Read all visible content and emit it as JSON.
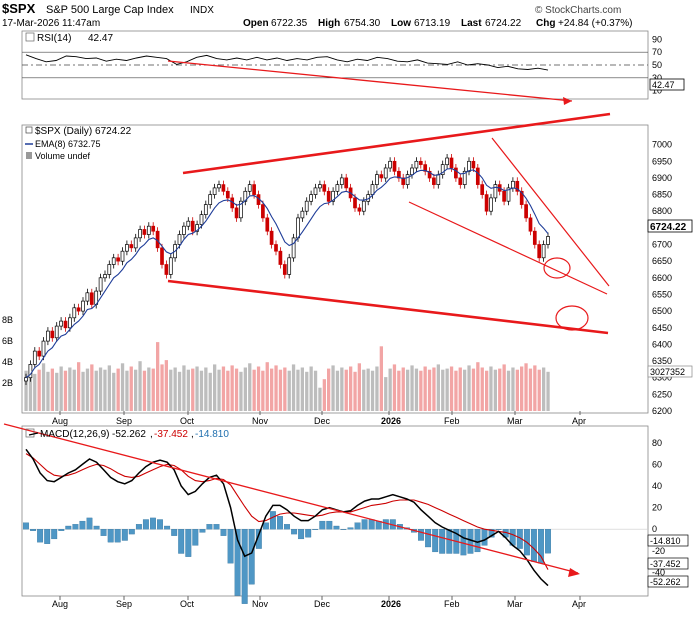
{
  "header": {
    "symbol": "$SPX",
    "name": "S&P 500 Large Cap Index",
    "exchange": "INDX",
    "date": "17-Mar-2026 11:47am",
    "open_label": "Open",
    "open": "6722.35",
    "high_label": "High",
    "high": "6754.30",
    "low_label": "Low",
    "low": "6713.19",
    "last_label": "Last",
    "last": "6724.22",
    "chg_label": "Chg",
    "chg": "+24.84 (+0.37%)",
    "brand": "© StockCharts.com"
  },
  "colors": {
    "up": "#000000",
    "down": "#cc0000",
    "trend": "#e8191b",
    "ema": "#1f3d99",
    "vol_gray": "#bdbdbd",
    "vol_red": "#f2a5a5",
    "hist": "#4f97c5"
  },
  "chart_data": [
    {
      "type": "line",
      "title": "RSI(14) 42.47",
      "indicator_label": "RSI(14)",
      "indicator_value": "42.47",
      "ylim": [
        0,
        100
      ],
      "y_ticks": [
        "90",
        "70",
        "50",
        "30",
        "10"
      ],
      "reference_lines": [
        70,
        50,
        30
      ],
      "last_value_tag": "42.47",
      "values": [
        66,
        60,
        55,
        57,
        64,
        63,
        60,
        61,
        56,
        59,
        57,
        61,
        64,
        62,
        60,
        51,
        55,
        62,
        65,
        60,
        58,
        61,
        58,
        62,
        58,
        61,
        57,
        60,
        58,
        62,
        63,
        58,
        55,
        59,
        57,
        62,
        60,
        56,
        55,
        58,
        53,
        52,
        51,
        55,
        50,
        52,
        50,
        46,
        48,
        44,
        43,
        45,
        42
      ]
    },
    {
      "type": "candlestick",
      "title": "$SPX (Daily) 6724.22",
      "legend": [
        "$SPX (Daily) 6724.22",
        "EMA(8) 6732.75",
        "Volume undef"
      ],
      "ylim": [
        6200,
        7050
      ],
      "y_ticks": [
        "7000",
        "6950",
        "6900",
        "6850",
        "6800",
        "6750",
        "6700",
        "6650",
        "6600",
        "6550",
        "6500",
        "6450",
        "6400",
        "6350",
        "6300",
        "6250",
        "6200"
      ],
      "last_value_tag": "6724.22",
      "volume_tag": "3027352",
      "volume_ticks": [
        "8B",
        "6B",
        "4B",
        "2B"
      ],
      "x_labels": [
        "Aug",
        "Sep",
        "Oct",
        "Nov",
        "Dec",
        "2026",
        "Feb",
        "Mar",
        "Apr"
      ],
      "closes": [
        6300,
        6340,
        6380,
        6365,
        6410,
        6440,
        6420,
        6455,
        6470,
        6450,
        6480,
        6510,
        6500,
        6530,
        6555,
        6520,
        6560,
        6600,
        6610,
        6640,
        6660,
        6650,
        6680,
        6700,
        6690,
        6720,
        6745,
        6730,
        6755,
        6740,
        6690,
        6640,
        6610,
        6660,
        6700,
        6730,
        6755,
        6770,
        6740,
        6760,
        6790,
        6820,
        6850,
        6870,
        6880,
        6860,
        6840,
        6810,
        6780,
        6830,
        6860,
        6880,
        6850,
        6820,
        6780,
        6740,
        6700,
        6680,
        6640,
        6610,
        6660,
        6720,
        6780,
        6800,
        6830,
        6850,
        6870,
        6880,
        6860,
        6830,
        6860,
        6880,
        6900,
        6870,
        6840,
        6810,
        6800,
        6830,
        6850,
        6880,
        6910,
        6900,
        6930,
        6950,
        6920,
        6900,
        6880,
        6910,
        6930,
        6950,
        6940,
        6920,
        6900,
        6880,
        6910,
        6940,
        6960,
        6930,
        6900,
        6880,
        6920,
        6950,
        6930,
        6880,
        6850,
        6800,
        6840,
        6880,
        6860,
        6830,
        6870,
        6890,
        6860,
        6820,
        6780,
        6740,
        6700,
        6660,
        6700,
        6724
      ],
      "ema": [
        6300,
        6310,
        6330,
        6340,
        6360,
        6380,
        6390,
        6410,
        6425,
        6430,
        6445,
        6460,
        6470,
        6485,
        6505,
        6508,
        6520,
        6540,
        6560,
        6580,
        6600,
        6610,
        6625,
        6645,
        6655,
        6670,
        6690,
        6700,
        6715,
        6720,
        6712,
        6695,
        6678,
        6672,
        6680,
        6695,
        6715,
        6730,
        6734,
        6742,
        6755,
        6770,
        6790,
        6810,
        6825,
        6832,
        6834,
        6828,
        6818,
        6821,
        6832,
        6846,
        6847,
        6839,
        6826,
        6808,
        6784,
        6762,
        6735,
        6708,
        6697,
        6703,
        6720,
        6738,
        6757,
        6777,
        6797,
        6814,
        6823,
        6825,
        6833,
        6844,
        6857,
        6860,
        6855,
        6844,
        6834,
        6833,
        6837,
        6848,
        6863,
        6872,
        6884,
        6899,
        6903,
        6902,
        6898,
        6901,
        6908,
        6918,
        6923,
        6922,
        6917,
        6908,
        6909,
        6916,
        6927,
        6928,
        6922,
        6912,
        6914,
        6922,
        6924,
        6915,
        6900,
        6878,
        6869,
        6872,
        6870,
        6862,
        6864,
        6870,
        6867,
        6856,
        6839,
        6817,
        6791,
        6763,
        6749,
        6732.75
      ],
      "volume_bn": [
        3.8,
        4.2,
        3.5,
        3.9,
        4.5,
        3.7,
        4.0,
        3.6,
        4.2,
        3.8,
        4.1,
        3.9,
        4.6,
        3.7,
        4.0,
        4.4,
        3.8,
        4.1,
        3.9,
        4.3,
        3.6,
        4.0,
        4.5,
        3.8,
        4.2,
        3.9,
        4.7,
        3.8,
        4.1,
        4.0,
        6.5,
        4.4,
        4.8,
        3.9,
        4.1,
        3.7,
        4.3,
        3.9,
        4.0,
        4.2,
        3.8,
        4.1,
        3.6,
        4.4,
        3.9,
        4.2,
        3.8,
        4.3,
        4.0,
        3.7,
        4.1,
        4.5,
        3.9,
        4.2,
        3.8,
        4.6,
        4.0,
        4.3,
        3.9,
        4.1,
        3.8,
        4.4,
        3.9,
        4.1,
        3.7,
        4.2,
        3.8,
        2.2,
        3.0,
        4.0,
        4.3,
        3.8,
        4.1,
        3.9,
        4.2,
        3.7,
        4.5,
        3.9,
        4.0,
        3.8,
        4.2,
        6.1,
        3.2,
        4.0,
        4.4,
        3.8,
        4.1,
        3.9,
        4.3,
        4.0,
        3.8,
        4.2,
        3.9,
        4.1,
        4.4,
        3.9,
        4.0,
        4.2,
        3.8,
        4.1,
        3.9,
        4.3,
        4.0,
        4.6,
        4.1,
        3.8,
        4.2,
        3.9,
        4.0,
        4.4,
        3.8,
        4.1,
        3.9,
        4.2,
        4.5,
        4.0,
        4.3,
        3.9,
        4.1,
        3.7
      ]
    },
    {
      "type": "line",
      "title": "MACD(12,26,9) -52.262, -37.452, -14.810",
      "indicator_label": "MACD(12,26,9)",
      "macd_value": "-52.262",
      "signal_value": "-37.452",
      "hist_value": "-14.810",
      "ylim": [
        -60,
        90
      ],
      "y_ticks": [
        "80",
        "60",
        "40",
        "20",
        "0",
        "-20",
        "-40"
      ],
      "x_labels": [
        "Aug",
        "Sep",
        "Oct",
        "Nov",
        "Dec",
        "2026",
        "Feb",
        "Mar",
        "Apr"
      ],
      "tags": [
        "-14.810",
        "-37.452",
        "-52.262"
      ],
      "macd": [
        74,
        65,
        52,
        45,
        44,
        48,
        52,
        55,
        60,
        65,
        62,
        55,
        48,
        44,
        42,
        45,
        52,
        58,
        62,
        64,
        62,
        55,
        40,
        32,
        35,
        42,
        48,
        50,
        42,
        20,
        -10,
        -25,
        -22,
        -5,
        12,
        22,
        22,
        18,
        12,
        8,
        8,
        12,
        18,
        20,
        18,
        16,
        17,
        22,
        26,
        28,
        28,
        30,
        32,
        30,
        28,
        25,
        18,
        12,
        6,
        2,
        -1,
        -4,
        -8,
        -10,
        -12,
        -10,
        -6,
        -2,
        -8,
        -15,
        -20,
        -28,
        -38,
        -46,
        -52.262
      ],
      "signal": [
        70,
        66,
        60,
        54,
        50,
        49,
        50,
        52,
        55,
        58,
        60,
        59,
        56,
        52,
        49,
        48,
        49,
        52,
        55,
        58,
        60,
        59,
        55,
        49,
        45,
        44,
        45,
        47,
        46,
        41,
        31,
        21,
        12,
        7,
        8,
        11,
        14,
        15,
        15,
        14,
        13,
        12,
        13,
        15,
        16,
        16,
        16,
        18,
        20,
        22,
        23,
        24,
        26,
        27,
        27,
        27,
        25,
        23,
        20,
        17,
        14,
        11,
        8,
        5,
        2,
        0,
        -1,
        -2,
        -3,
        -5,
        -8,
        -12,
        -18,
        -25,
        -37.452
      ]
    }
  ]
}
